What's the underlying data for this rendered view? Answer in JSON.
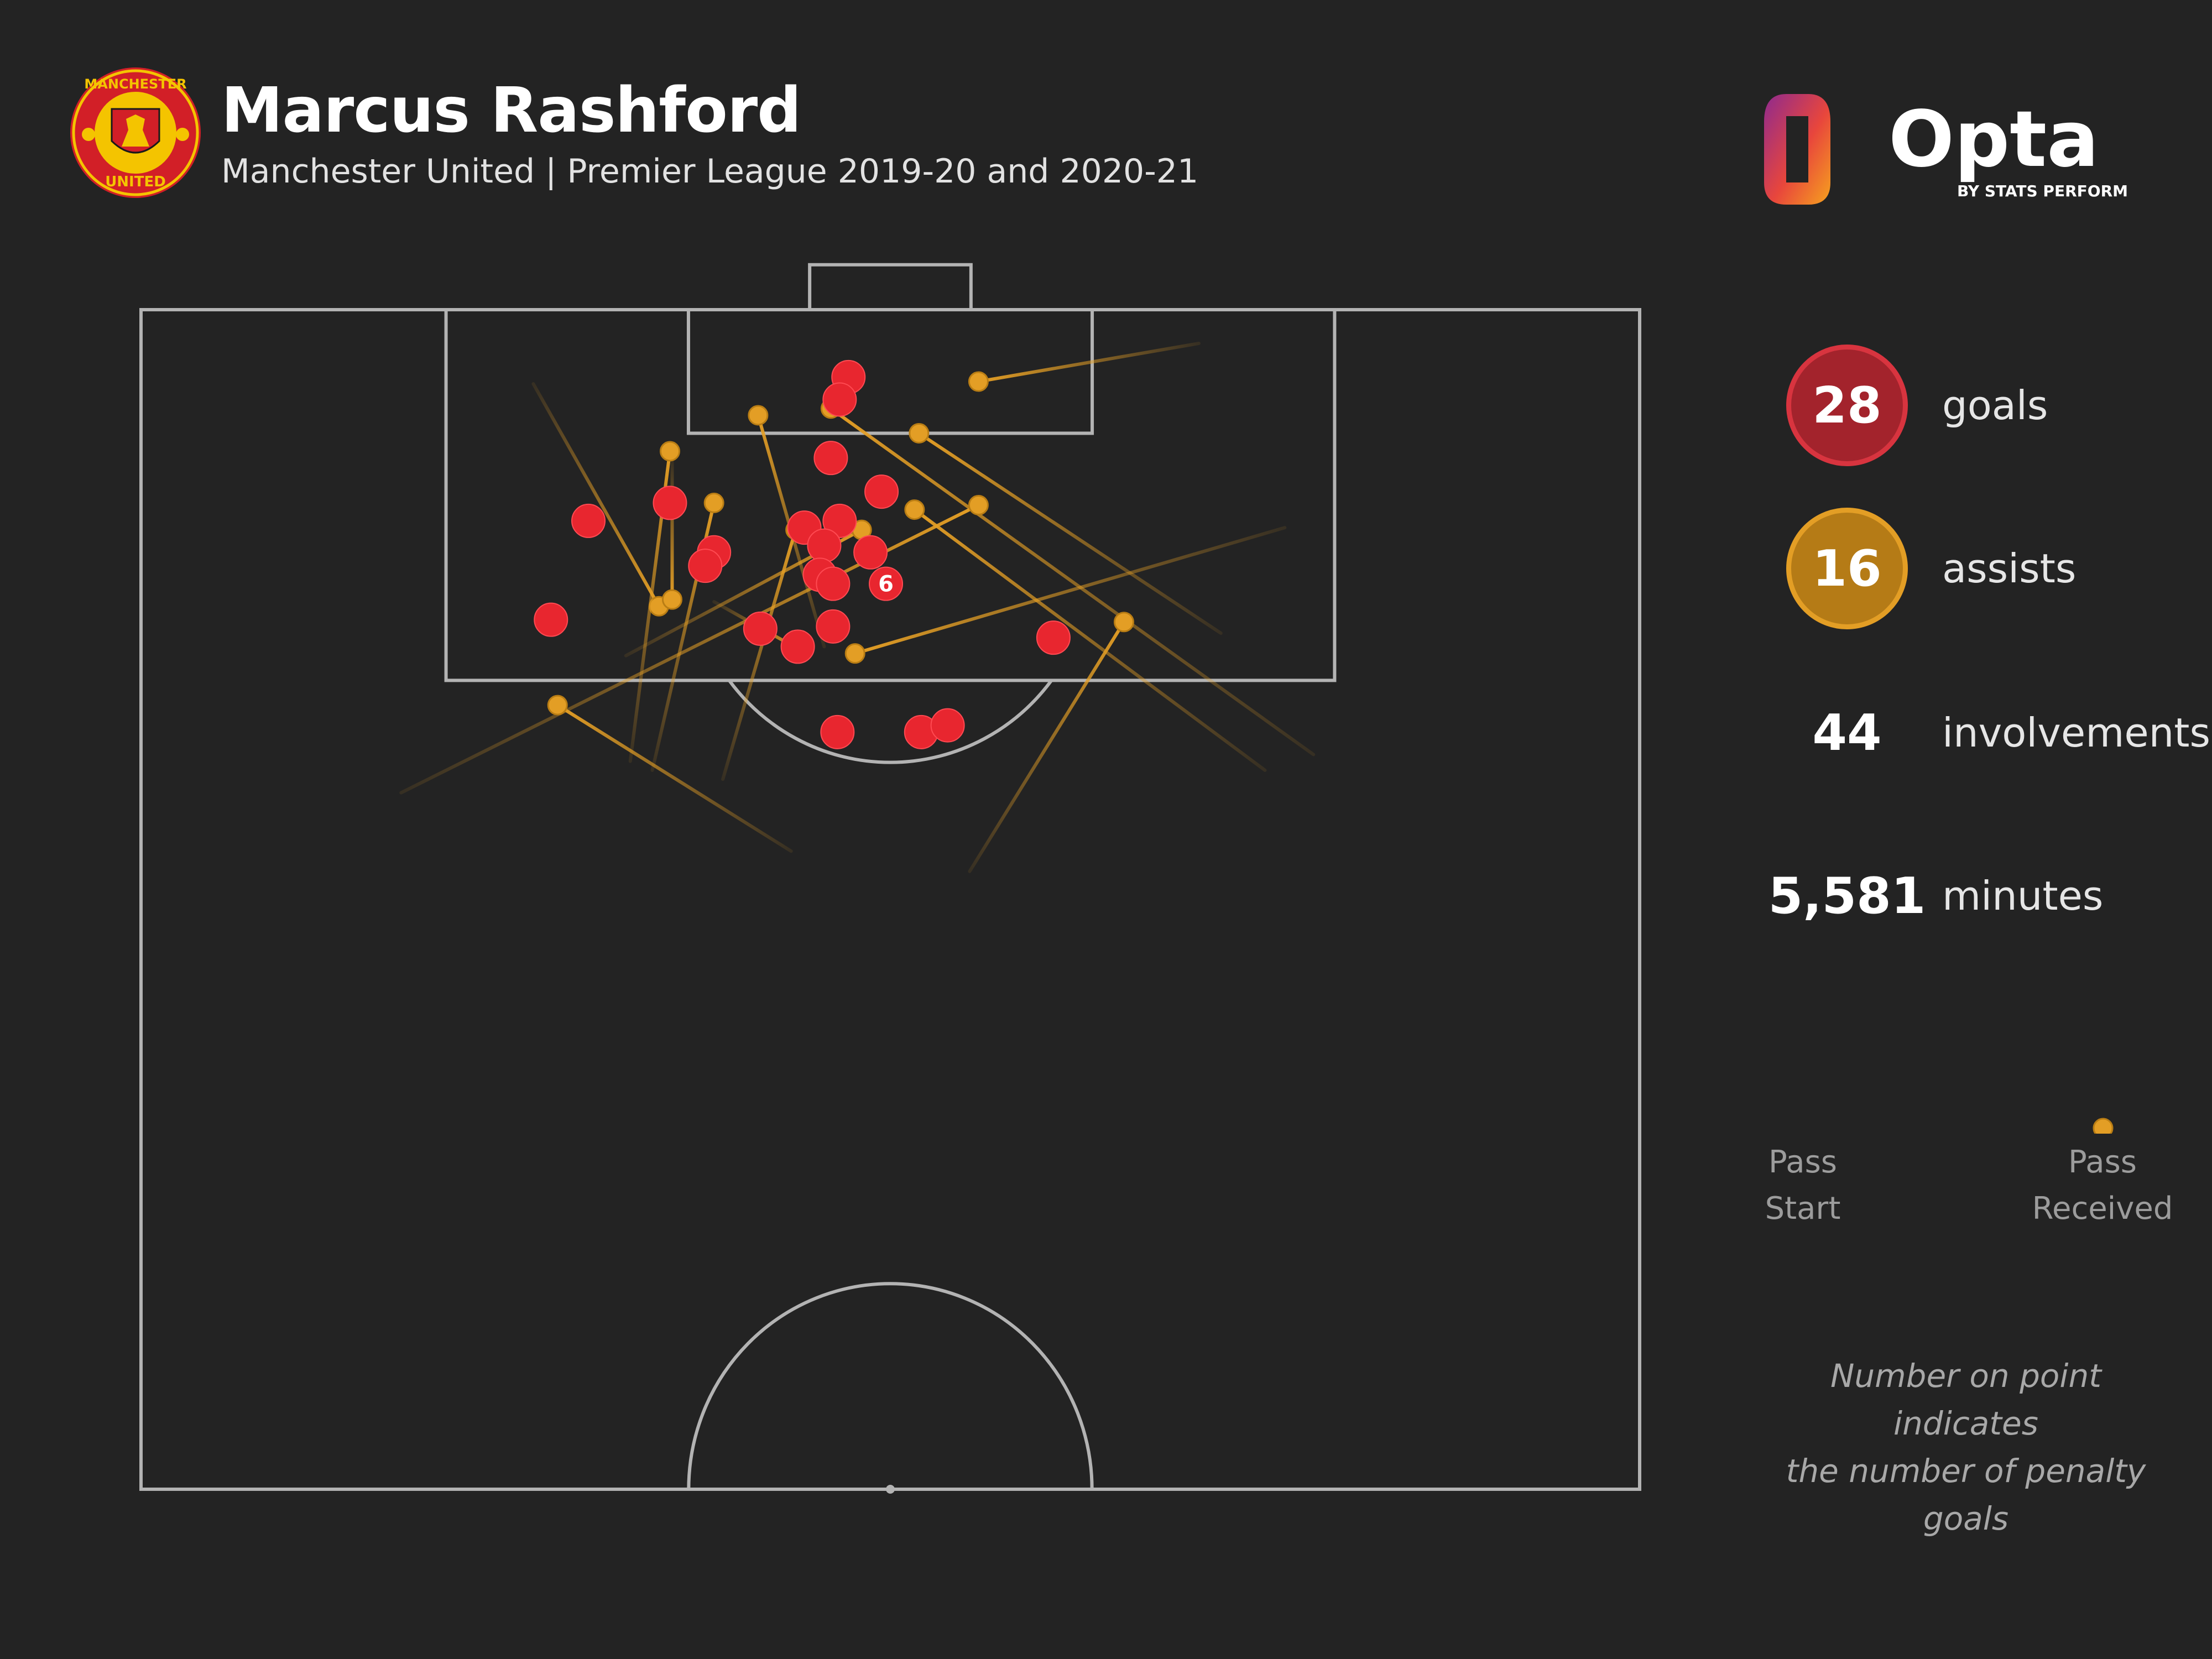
{
  "header": {
    "title": "Marcus Rashford",
    "subtitle": "Manchester United | Premier League 2019-20 and 2020-21"
  },
  "crest": {
    "text_top": "MANCHESTER",
    "text_bottom": "UNITED"
  },
  "brand": {
    "name": "Opta",
    "tagline": "BY STATS PERFORM"
  },
  "stats": {
    "goals": {
      "value": "28",
      "label": "goals"
    },
    "assists": {
      "value": "16",
      "label": "assists"
    },
    "involvements": {
      "value": "44",
      "label": "involvements"
    },
    "minutes": {
      "value": "5,581",
      "label": "minutes"
    }
  },
  "legend": {
    "start_label_1": "Pass",
    "start_label_2": "Start",
    "end_label_1": "Pass",
    "end_label_2": "Received"
  },
  "note": {
    "line1": "Number on point indicates",
    "line2": "the number of penalty goals"
  },
  "colors": {
    "background": "#232323",
    "pitch_lines": "#b3b3b3",
    "goal": "#e8262f",
    "assist": "#e39e25"
  },
  "chart_data": {
    "type": "scatter",
    "units": "pitch metres; x = distance from left touchline (0-68), y = distance from goal line (0-52.5, half pitch)",
    "pitch": {
      "width": 68,
      "half_length": 52.5
    },
    "goals": [
      {
        "x": 32.1,
        "y": 3.0
      },
      {
        "x": 31.7,
        "y": 4.0
      },
      {
        "x": 31.3,
        "y": 6.6
      },
      {
        "x": 33.6,
        "y": 8.1
      },
      {
        "x": 24.0,
        "y": 8.6
      },
      {
        "x": 20.3,
        "y": 9.4
      },
      {
        "x": 31.7,
        "y": 9.4
      },
      {
        "x": 30.1,
        "y": 9.7
      },
      {
        "x": 31.0,
        "y": 10.5
      },
      {
        "x": 26.0,
        "y": 10.8
      },
      {
        "x": 25.6,
        "y": 11.4
      },
      {
        "x": 33.1,
        "y": 10.8
      },
      {
        "x": 30.8,
        "y": 11.8
      },
      {
        "x": 31.4,
        "y": 12.2
      },
      {
        "x": 33.8,
        "y": 12.2,
        "penalties": 6
      },
      {
        "x": 18.6,
        "y": 13.8
      },
      {
        "x": 28.1,
        "y": 14.2
      },
      {
        "x": 31.4,
        "y": 14.1
      },
      {
        "x": 29.8,
        "y": 15.0
      },
      {
        "x": 41.4,
        "y": 14.6
      },
      {
        "x": 31.6,
        "y": 18.8
      },
      {
        "x": 35.4,
        "y": 18.8
      },
      {
        "x": 36.6,
        "y": 18.5
      }
    ],
    "assists": [
      {
        "start": {
          "x": 48.0,
          "y": 1.5
        },
        "end": {
          "x": 38.0,
          "y": 3.2
        }
      },
      {
        "start": {
          "x": 49.0,
          "y": 14.4
        },
        "end": {
          "x": 35.3,
          "y": 5.5
        }
      },
      {
        "start": {
          "x": 53.2,
          "y": 19.8
        },
        "end": {
          "x": 31.3,
          "y": 4.4
        }
      },
      {
        "start": {
          "x": 51.0,
          "y": 20.5
        },
        "end": {
          "x": 35.1,
          "y": 8.9
        }
      },
      {
        "start": {
          "x": 37.6,
          "y": 25.0
        },
        "end": {
          "x": 44.6,
          "y": 13.9
        }
      },
      {
        "start": {
          "x": 51.9,
          "y": 9.7
        },
        "end": {
          "x": 32.4,
          "y": 15.3
        }
      },
      {
        "start": {
          "x": 11.8,
          "y": 21.5
        },
        "end": {
          "x": 38.0,
          "y": 8.7
        }
      },
      {
        "start": {
          "x": 17.8,
          "y": 3.3
        },
        "end": {
          "x": 23.5,
          "y": 13.2
        }
      },
      {
        "start": {
          "x": 29.5,
          "y": 24.1
        },
        "end": {
          "x": 18.9,
          "y": 17.6
        }
      },
      {
        "start": {
          "x": 22.2,
          "y": 20.1
        },
        "end": {
          "x": 24.0,
          "y": 6.3
        }
      },
      {
        "start": {
          "x": 26.4,
          "y": 20.9
        },
        "end": {
          "x": 29.7,
          "y": 9.8
        }
      },
      {
        "start": {
          "x": 23.2,
          "y": 20.5
        },
        "end": {
          "x": 26.0,
          "y": 8.6
        }
      },
      {
        "start": {
          "x": 24.1,
          "y": 6.7
        },
        "end": {
          "x": 24.1,
          "y": 12.9
        }
      },
      {
        "start": {
          "x": 22.0,
          "y": 15.4
        },
        "end": {
          "x": 32.7,
          "y": 9.8
        }
      },
      {
        "start": {
          "x": 31.0,
          "y": 15.0
        },
        "end": {
          "x": 28.0,
          "y": 4.7
        }
      },
      {
        "start": {
          "x": 26.0,
          "y": 13.0
        },
        "end": {
          "x": 30.0,
          "y": 15.2
        }
      }
    ]
  }
}
